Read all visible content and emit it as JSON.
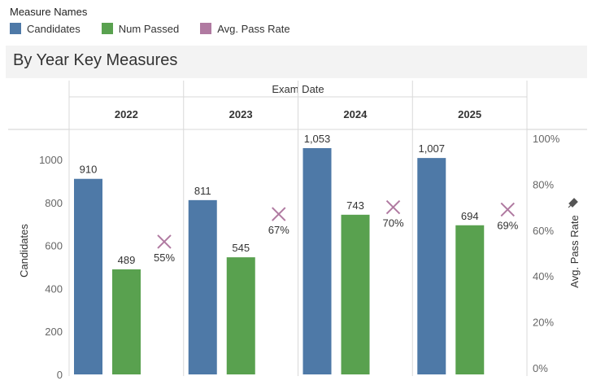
{
  "legend": {
    "title": "Measure Names",
    "items": [
      {
        "label": "Candidates",
        "color": "#4e79a7"
      },
      {
        "label": "Num Passed",
        "color": "#59a14f"
      },
      {
        "label": "Avg. Pass Rate",
        "color": "#b07aa1"
      }
    ]
  },
  "header": {
    "title": "By Year Key Measures"
  },
  "chart_data": {
    "type": "bar",
    "column_header": "Exam Date",
    "categories": [
      "2022",
      "2023",
      "2024",
      "2025"
    ],
    "series": [
      {
        "name": "Candidates",
        "axis": "left",
        "values": [
          910,
          811,
          1053,
          1007
        ],
        "labels": [
          "910",
          "811",
          "1,053",
          "1,007"
        ],
        "color": "#4e79a7"
      },
      {
        "name": "Num Passed",
        "axis": "left",
        "values": [
          489,
          545,
          743,
          694
        ],
        "labels": [
          "489",
          "545",
          "743",
          "694"
        ],
        "color": "#59a14f"
      },
      {
        "name": "Avg. Pass Rate",
        "axis": "right",
        "mark": "x",
        "values": [
          55,
          67,
          70,
          69
        ],
        "labels": [
          "55%",
          "67%",
          "70%",
          "69%"
        ],
        "color": "#b07aa1"
      }
    ],
    "ylabel": "Candidates",
    "ylim": [
      0,
      1140
    ],
    "yticks": [
      "0",
      "200",
      "400",
      "600",
      "800",
      "1000"
    ],
    "ytick_values": [
      0,
      200,
      400,
      600,
      800,
      1000
    ],
    "y2label": "Avg. Pass Rate",
    "y2lim": [
      0,
      100
    ],
    "y2ticks": [
      "0%",
      "20%",
      "40%",
      "60%",
      "80%",
      "100%"
    ],
    "y2tick_values": [
      0,
      20,
      40,
      60,
      80,
      100
    ],
    "grid": false,
    "legend_position": "top-left"
  }
}
